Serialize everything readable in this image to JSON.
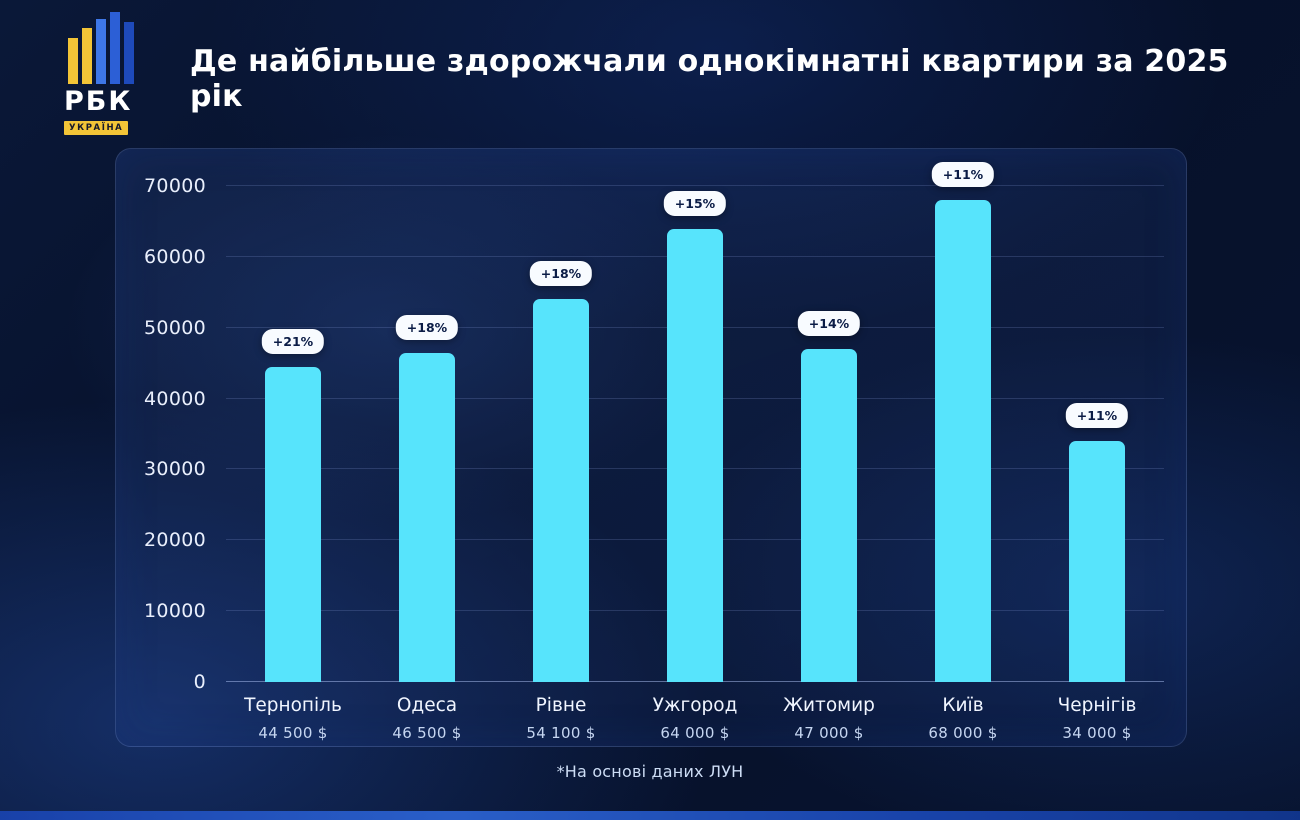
{
  "logo": {
    "brand": "РБК",
    "country": "УКРАЇНА"
  },
  "header": {
    "title": "Де найбільше здорожчали однокімнатні квартири за 2025 рік"
  },
  "footer": {
    "source": "*На основі даних ЛУН"
  },
  "chart_data": {
    "type": "bar",
    "title": "Де найбільше здорожчали однокімнатні квартири за 2025 рік",
    "categories": [
      "Тернопіль",
      "Одеса",
      "Рівне",
      "Ужгород",
      "Житомир",
      "Київ",
      "Чернігів"
    ],
    "values": [
      44500,
      46500,
      54100,
      64000,
      47000,
      68000,
      34000
    ],
    "price_labels": [
      "44 500 $",
      "46 500 $",
      "54 100 $",
      "64 000 $",
      "47 000 $",
      "68 000 $",
      "34 000 $"
    ],
    "badges": [
      "+21%",
      "+18%",
      "+18%",
      "+15%",
      "+14%",
      "+11%",
      "+11%"
    ],
    "ylim": [
      0,
      70000
    ],
    "yticks": [
      0,
      10000,
      20000,
      30000,
      40000,
      50000,
      60000,
      70000
    ],
    "bar_color": "#57E4FC",
    "grid": true,
    "legend": "none",
    "source_note": "*На основі даних ЛУН"
  }
}
